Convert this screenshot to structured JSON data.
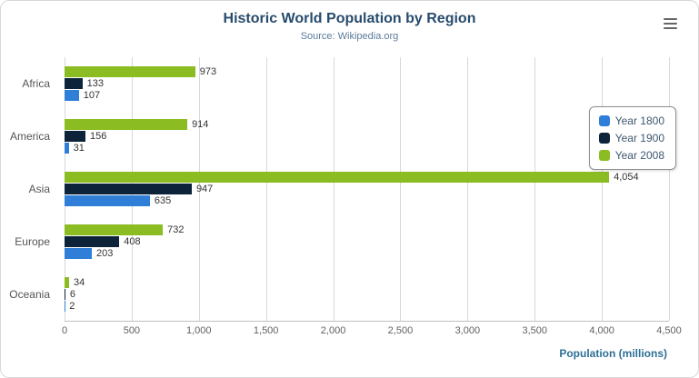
{
  "chart_data": {
    "type": "bar",
    "orientation": "horizontal",
    "title": "Historic World Population by Region",
    "subtitle": "Source: Wikipedia.org",
    "categories": [
      "Africa",
      "America",
      "Asia",
      "Europe",
      "Oceania"
    ],
    "series": [
      {
        "name": "Year 1800",
        "color": "#2f7ed8",
        "values": [
          107,
          31,
          635,
          203,
          2
        ]
      },
      {
        "name": "Year 1900",
        "color": "#0d233a",
        "values": [
          133,
          156,
          947,
          408,
          6
        ]
      },
      {
        "name": "Year 2008",
        "color": "#8bbc21",
        "values": [
          973,
          914,
          4054,
          732,
          34
        ]
      }
    ],
    "bar_display_order_top_to_bottom": [
      "Year 2008",
      "Year 1900",
      "Year 1800"
    ],
    "xlabel": "Population (millions)",
    "ylabel": "",
    "xlim": [
      0,
      4500
    ],
    "xticks": [
      0,
      500,
      1000,
      1500,
      2000,
      2500,
      3000,
      3500,
      4000,
      4500
    ],
    "grid": true,
    "legend_position": "right",
    "data_labels": true,
    "number_format": "thousands-comma"
  },
  "colors": {
    "title": "#274b6d",
    "subtitle": "#5a7a9b",
    "gridline": "#d8d8d8",
    "axis_line": "#c0c0c0",
    "tick_label": "#606060",
    "xaxis_title": "#2e6f96",
    "legend_border": "#8f8f8f",
    "data_label": "#333333"
  },
  "menu": {
    "export_icon": "hamburger-menu"
  }
}
